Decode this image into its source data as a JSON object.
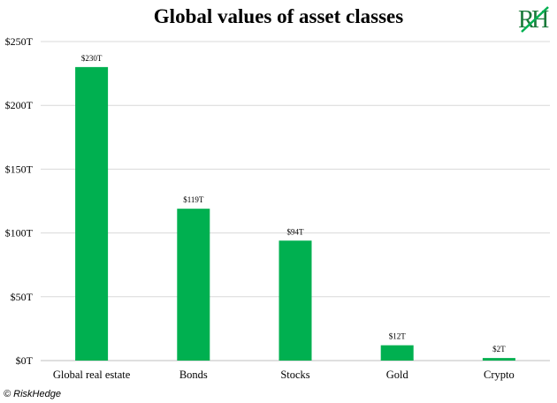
{
  "brand": {
    "logo_text": "RH",
    "copyright": "© RiskHedge",
    "accent_color": "#00b050",
    "logo_color": "#1a7a3a"
  },
  "chart_data": {
    "type": "bar",
    "title": "Global values of asset classes",
    "xlabel": "",
    "ylabel": "",
    "categories": [
      "Global real estate",
      "Bonds",
      "Stocks",
      "Gold",
      "Crypto"
    ],
    "values": [
      230,
      119,
      94,
      12,
      2
    ],
    "data_labels": [
      "$230T",
      "$119T",
      "$94T",
      "$12T",
      "$2T"
    ],
    "ylim": [
      0,
      250
    ],
    "yticks": [
      0,
      50,
      100,
      150,
      200,
      250
    ],
    "ytick_labels": [
      "$0T",
      "$50T",
      "$100T",
      "$150T",
      "$200T",
      "$250T"
    ],
    "grid": true,
    "legend": "none",
    "bar_color": "#00b050"
  }
}
